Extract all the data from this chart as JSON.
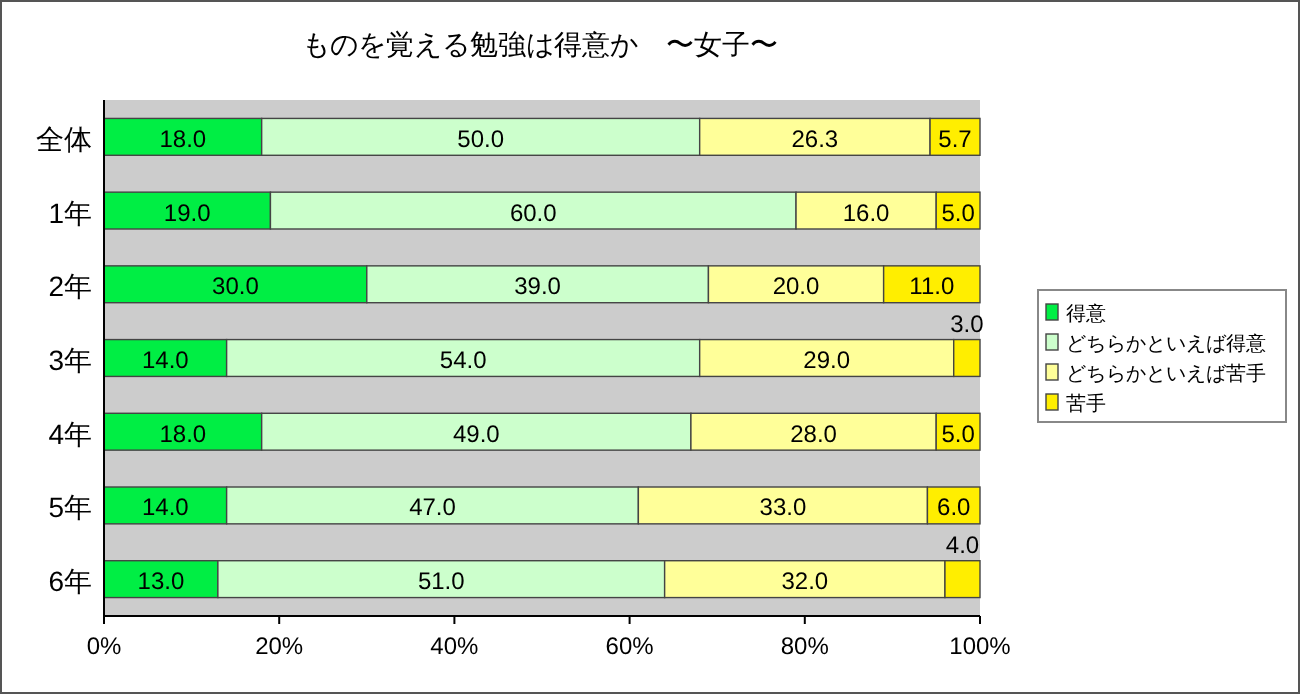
{
  "chart_data": {
    "type": "bar",
    "title": "ものを覚える勉強は得意か　〜女子〜",
    "orientation": "horizontal",
    "stacked": true,
    "categories": [
      "全体",
      "1年",
      "2年",
      "3年",
      "4年",
      "5年",
      "6年"
    ],
    "series": [
      {
        "name": "得意",
        "color": "#00ee44",
        "values": [
          18.0,
          19.0,
          30.0,
          14.0,
          18.0,
          14.0,
          13.0
        ],
        "value_labels": [
          "18.0",
          "19.0",
          "30.0",
          "14.0",
          "18.0",
          "14.0",
          "13.0"
        ]
      },
      {
        "name": "どちらかといえば得意",
        "color": "#ccffcc",
        "values": [
          50.0,
          60.0,
          39.0,
          54.0,
          49.0,
          47.0,
          51.0
        ],
        "value_labels": [
          "50.0",
          "60.0",
          "39.0",
          "54.0",
          "49.0",
          "47.0",
          "51.0"
        ]
      },
      {
        "name": "どちらかといえば苦手",
        "color": "#ffff99",
        "values": [
          26.3,
          16.0,
          20.0,
          29.0,
          28.0,
          33.0,
          32.0
        ],
        "value_labels": [
          "26.3",
          "16.0",
          "20.0",
          "29.0",
          "28.0",
          "33.0",
          "32.0"
        ]
      },
      {
        "name": "苦手",
        "color": "#ffee00",
        "values": [
          5.7,
          5.0,
          11.0,
          3.0,
          5.0,
          6.0,
          4.0
        ],
        "value_labels": [
          "5.7",
          "5.0",
          "11.0",
          "3.0",
          "5.0",
          "6.0",
          "4.0"
        ]
      }
    ],
    "xlim": [
      0,
      100
    ],
    "xticks": [
      {
        "value": 0,
        "label": "0%"
      },
      {
        "value": 20,
        "label": "20%"
      },
      {
        "value": 40,
        "label": "40%"
      },
      {
        "value": 60,
        "label": "60%"
      },
      {
        "value": 80,
        "label": "80%"
      },
      {
        "value": 100,
        "label": "100%"
      }
    ],
    "legend": "right"
  }
}
